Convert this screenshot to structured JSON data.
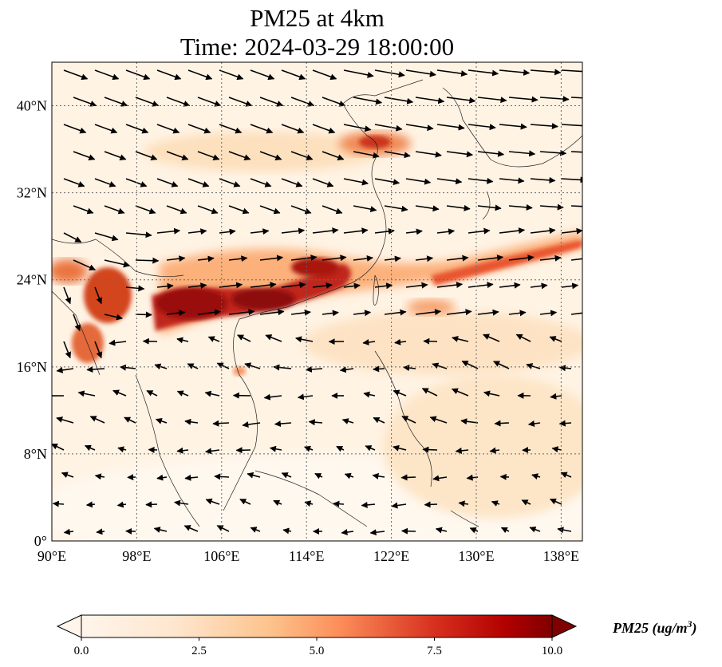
{
  "title": {
    "line1": "PM25 at 4km",
    "line2": "Time: 2024-03-29 18:00:00"
  },
  "map": {
    "lon_range": [
      90,
      140
    ],
    "lat_range": [
      0,
      44
    ],
    "lon_ticks": [
      {
        "value": 90,
        "label": "90°E"
      },
      {
        "value": 98,
        "label": "98°E"
      },
      {
        "value": 106,
        "label": "106°E"
      },
      {
        "value": 114,
        "label": "114°E"
      },
      {
        "value": 122,
        "label": "122°E"
      },
      {
        "value": 130,
        "label": "130°E"
      },
      {
        "value": 138,
        "label": "138°E"
      }
    ],
    "lat_ticks": [
      {
        "value": 0,
        "label": "0°"
      },
      {
        "value": 8,
        "label": "8°N"
      },
      {
        "value": 16,
        "label": "16°N"
      },
      {
        "value": 24,
        "label": "24°N"
      },
      {
        "value": 32,
        "label": "32°N"
      },
      {
        "value": 40,
        "label": "40°N"
      }
    ],
    "gridlines": true
  },
  "colorbar": {
    "min": 0,
    "max": 10,
    "ticks": [
      "0.0",
      "2.5",
      "5.0",
      "7.5",
      "10.0"
    ],
    "label": "PM25 (ug/m",
    "label_sup": "3",
    "label_close": ")",
    "colors": [
      "#fff5eb",
      "#fdd4a8",
      "#fd8d3c",
      "#d94801",
      "#7f0000"
    ]
  }
}
